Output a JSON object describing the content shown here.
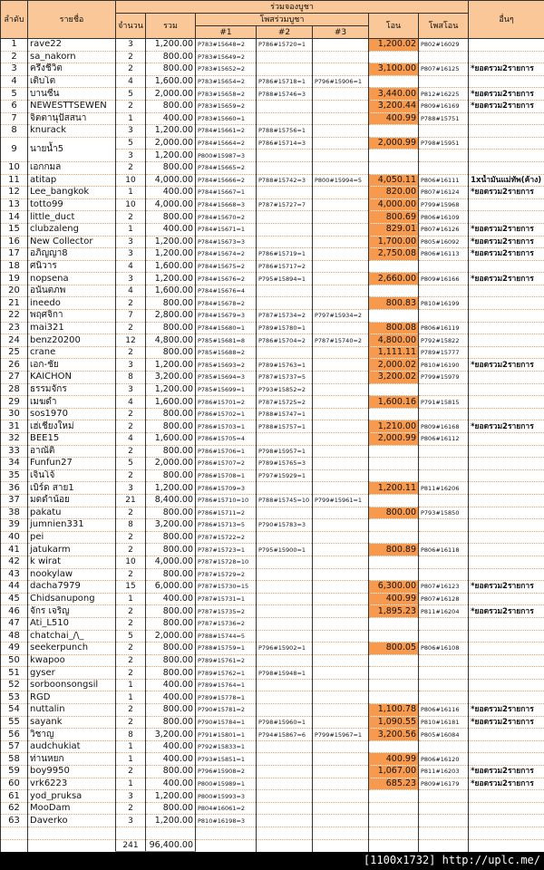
{
  "header": {
    "no": "ลำดับ",
    "name": "รายชื่อ",
    "group": "ร่วมจองบูชา",
    "qty": "จำนวน",
    "total": "รวม",
    "posts": "โพสร่วมบูชา",
    "p1": "#1",
    "p2": "#2",
    "p3": "#3",
    "transfer": "โอน",
    "transfer_post": "โพสโอน",
    "other": "อื่นๆ"
  },
  "colors": {
    "header_bg": "#fac898",
    "transfer_bg": "#f79a4e"
  },
  "rows": [
    [
      "1",
      "rave22",
      [
        [
          "3",
          "1,200.00",
          "P783#15648=2",
          "P786#15720=1",
          "",
          "1,200.02",
          "P802#16029",
          ""
        ]
      ]
    ],
    [
      "2",
      "sa_nakorn",
      [
        [
          "2",
          "800.00",
          "P783#15649=2",
          "",
          "",
          "",
          "",
          ""
        ]
      ]
    ],
    [
      "3",
      "ครึ่งชีวิต",
      [
        [
          "2",
          "800.00",
          "P783#15652=2",
          "",
          "",
          "3,100.00",
          "P807#16125",
          "*ยอดรวม2รายการ"
        ]
      ]
    ],
    [
      "4",
      "เติบโต",
      [
        [
          "4",
          "1,600.00",
          "P783#15654=2",
          "P786#15718=1",
          "P796#15906=1",
          "",
          "",
          ""
        ]
      ]
    ],
    [
      "5",
      "บานชื่น",
      [
        [
          "5",
          "2,000.00",
          "P783#15658=2",
          "P788#15746=3",
          "",
          "3,440.00",
          "P812#16225",
          "*ยอดรวม2รายการ"
        ]
      ]
    ],
    [
      "6",
      "NEWESTTSEWEN",
      [
        [
          "2",
          "800.00",
          "P783#15659=2",
          "",
          "",
          "3,200.44",
          "P809#16169",
          "*ยอดรวม2รายการ"
        ]
      ]
    ],
    [
      "7",
      "จิตตานุปัสสนา",
      [
        [
          "1",
          "400.00",
          "P783#15660=1",
          "",
          "",
          "400.99",
          "P788#15751",
          ""
        ]
      ]
    ],
    [
      "8",
      "knurack",
      [
        [
          "3",
          "1,200.00",
          "P784#15661=2",
          "P788#15756=1",
          "",
          "",
          "",
          ""
        ]
      ]
    ],
    [
      "9",
      "นายน้ำ5",
      [
        [
          "5",
          "2,000.00",
          "P784#15664=2",
          "P786#15714=3",
          "",
          "2,000.99",
          "P798#15951",
          ""
        ],
        [
          "3",
          "1,200.00",
          "P800#15987=3",
          "",
          "",
          "",
          "",
          ""
        ]
      ]
    ],
    [
      "10",
      "เอกกมล",
      [
        [
          "2",
          "800.00",
          "P784#15665=2",
          "",
          "",
          "",
          "",
          ""
        ]
      ]
    ],
    [
      "11",
      "atitap",
      [
        [
          "10",
          "4,000.00",
          "P784#15666=2",
          "P788#15742=3",
          "P800#15994=5",
          "4,050.11",
          "P806#16111",
          "1xน้ำมันแม่ทัพ(ค้าง)"
        ]
      ]
    ],
    [
      "12",
      "Lee_bangkok",
      [
        [
          "1",
          "400.00",
          "P784#15667=1",
          "",
          "",
          "820.00",
          "P807#16124",
          "*ยอดรวม2รายการ"
        ]
      ]
    ],
    [
      "13",
      "totto99",
      [
        [
          "10",
          "4,000.00",
          "P784#15668=3",
          "P787#15727=7",
          "",
          "4,000.00",
          "P799#15968",
          ""
        ]
      ]
    ],
    [
      "14",
      "little_duct",
      [
        [
          "2",
          "800.00",
          "P784#15670=2",
          "",
          "",
          "800.69",
          "P806#16109",
          ""
        ]
      ]
    ],
    [
      "15",
      "clubzaleng",
      [
        [
          "1",
          "400.00",
          "P784#15671=1",
          "",
          "",
          "829.01",
          "P807#16126",
          "*ยอดรวม2รายการ"
        ]
      ]
    ],
    [
      "16",
      "New Collector",
      [
        [
          "3",
          "1,200.00",
          "P784#15673=3",
          "",
          "",
          "1,700.00",
          "P805#16092",
          "*ยอดรวม2รายการ"
        ]
      ]
    ],
    [
      "17",
      "อภิญญา8",
      [
        [
          "3",
          "1,200.00",
          "P784#15674=2",
          "P786#15719=1",
          "",
          "2,750.08",
          "P806#16113",
          "*ยอดรวม2รายการ"
        ]
      ]
    ],
    [
      "18",
      "ศนิวาร",
      [
        [
          "4",
          "1,600.00",
          "P784#15675=2",
          "P786#15717=2",
          "",
          "",
          "",
          ""
        ]
      ]
    ],
    [
      "19",
      "nopsena",
      [
        [
          "3",
          "1,200.00",
          "P784#15676=2",
          "P795#15894=1",
          "",
          "2,660.00",
          "P809#16166",
          "*ยอดรวม2รายการ"
        ]
      ]
    ],
    [
      "20",
      "อนันตภพ",
      [
        [
          "4",
          "1,600.00",
          "P784#15676=4",
          "",
          "",
          "",
          "",
          ""
        ]
      ]
    ],
    [
      "21",
      "ineedo",
      [
        [
          "2",
          "800.00",
          "P784#15678=2",
          "",
          "",
          "800.83",
          "P810#16199",
          ""
        ]
      ]
    ],
    [
      "22",
      "พฤศจิกา",
      [
        [
          "7",
          "2,800.00",
          "P784#15679=3",
          "P787#15734=2",
          "P797#15934=2",
          "",
          "",
          ""
        ]
      ]
    ],
    [
      "23",
      "mai321",
      [
        [
          "2",
          "800.00",
          "P784#15680=1",
          "P789#15780=1",
          "",
          "800.08",
          "P806#16119",
          ""
        ]
      ]
    ],
    [
      "24",
      "benz20200",
      [
        [
          "12",
          "4,800.00",
          "P785#15681=8",
          "P786#15704=2",
          "P787#15740=2",
          "4,800.00",
          "P792#15822",
          ""
        ]
      ]
    ],
    [
      "25",
      "crane",
      [
        [
          "2",
          "800.00",
          "P785#15688=2",
          "",
          "",
          "1,111.11",
          "P789#15777",
          ""
        ]
      ]
    ],
    [
      "26",
      "เอก-ชัย",
      [
        [
          "3",
          "1,200.00",
          "P785#15693=2",
          "P789#15763=1",
          "",
          "2,000.02",
          "P810#16190",
          "*ยอดรวม2รายการ"
        ]
      ]
    ],
    [
      "27",
      "KAICHON",
      [
        [
          "8",
          "3,200.00",
          "P785#15694=3",
          "P787#15737=5",
          "",
          "3,200.02",
          "P799#15979",
          ""
        ]
      ]
    ],
    [
      "28",
      "ธรรมจักร",
      [
        [
          "3",
          "1,200.00",
          "P785#15699=1",
          "P793#15852=2",
          "",
          "",
          "",
          ""
        ]
      ]
    ],
    [
      "29",
      "เมฆดำ",
      [
        [
          "4",
          "1,600.00",
          "P786#15701=2",
          "P787#15725=2",
          "",
          "1,600.16",
          "P791#15815",
          ""
        ]
      ]
    ],
    [
      "30",
      "sos1970",
      [
        [
          "2",
          "800.00",
          "P786#15702=1",
          "P788#15747=1",
          "",
          "",
          "",
          ""
        ]
      ]
    ],
    [
      "31",
      "เฮ่เชียงใหม่",
      [
        [
          "2",
          "800.00",
          "P786#15703=1",
          "P788#15757=1",
          "",
          "1,210.00",
          "P809#16168",
          "*ยอดรวม2รายการ"
        ]
      ]
    ],
    [
      "32",
      "BEE15",
      [
        [
          "4",
          "1,600.00",
          "P786#15705=4",
          "",
          "",
          "2,000.99",
          "P806#16112",
          ""
        ]
      ]
    ],
    [
      "33",
      "อาณัติ",
      [
        [
          "2",
          "800.00",
          "P786#15706=1",
          "P798#15957=1",
          "",
          "",
          "",
          ""
        ]
      ]
    ],
    [
      "34",
      "Funfun27",
      [
        [
          "5",
          "2,000.00",
          "P786#15707=2",
          "P789#15765=3",
          "",
          "",
          "",
          ""
        ]
      ]
    ],
    [
      "35",
      "เจินโจ้",
      [
        [
          "2",
          "800.00",
          "P786#15708=1",
          "P797#15929=1",
          "",
          "",
          "",
          ""
        ]
      ]
    ],
    [
      "36",
      "เบิร์ด  สาย1",
      [
        [
          "3",
          "1,200.00",
          "P786#15709=3",
          "",
          "",
          "1,200.11",
          "P811#16206",
          ""
        ]
      ]
    ],
    [
      "37",
      "มดดำน้อย",
      [
        [
          "21",
          "8,400.00",
          "P786#15710=10",
          "P788#15745=10",
          "P799#15961=1",
          "",
          "",
          ""
        ]
      ]
    ],
    [
      "38",
      "pakatu",
      [
        [
          "2",
          "800.00",
          "P786#15711=2",
          "",
          "",
          "800.00",
          "P793#15850",
          ""
        ]
      ]
    ],
    [
      "39",
      "jumnien331",
      [
        [
          "8",
          "3,200.00",
          "P786#15713=5",
          "P790#15783=3",
          "",
          "",
          "",
          ""
        ]
      ]
    ],
    [
      "40",
      "pei",
      [
        [
          "2",
          "800.00",
          "P787#15722=2",
          "",
          "",
          "",
          "",
          ""
        ]
      ]
    ],
    [
      "41",
      "jatukarm",
      [
        [
          "2",
          "800.00",
          "P787#15723=1",
          "P795#15900=1",
          "",
          "800.89",
          "P806#16118",
          ""
        ]
      ]
    ],
    [
      "42",
      "k wirat",
      [
        [
          "10",
          "4,000.00",
          "P787#15728=10",
          "",
          "",
          "",
          "",
          ""
        ]
      ]
    ],
    [
      "43",
      "nookylaw",
      [
        [
          "2",
          "800.00",
          "P787#15729=2",
          "",
          "",
          "",
          "",
          ""
        ]
      ]
    ],
    [
      "44",
      "dacha7979",
      [
        [
          "15",
          "6,000.00",
          "P787#15730=15",
          "",
          "",
          "6,300.00",
          "P807#16123",
          "*ยอดรวม2รายการ"
        ]
      ]
    ],
    [
      "45",
      "Chidsanupong",
      [
        [
          "1",
          "400.00",
          "P787#15731=1",
          "",
          "",
          "400.99",
          "P807#16128",
          ""
        ]
      ]
    ],
    [
      "46",
      "จักร  เจริญ",
      [
        [
          "2",
          "800.00",
          "P787#15735=2",
          "",
          "",
          "1,895.23",
          "P811#16204",
          "*ยอดรวม2รายการ"
        ]
      ]
    ],
    [
      "47",
      "Ati_L510",
      [
        [
          "2",
          "800.00",
          "P787#15736=2",
          "",
          "",
          "",
          "",
          ""
        ]
      ]
    ],
    [
      "48",
      "chatchai_/\\_",
      [
        [
          "5",
          "2,000.00",
          "P788#15744=5",
          "",
          "",
          "",
          "",
          ""
        ]
      ]
    ],
    [
      "49",
      "seekerpunch",
      [
        [
          "2",
          "800.00",
          "P788#15759=1",
          "P796#15902=1",
          "",
          "800.05",
          "P806#16108",
          ""
        ]
      ]
    ],
    [
      "50",
      "kwapoo",
      [
        [
          "2",
          "800.00",
          "P789#15761=2",
          "",
          "",
          "",
          "",
          ""
        ]
      ]
    ],
    [
      "51",
      "gyser",
      [
        [
          "2",
          "800.00",
          "P789#15762=1",
          "P798#15948=1",
          "",
          "",
          "",
          ""
        ]
      ]
    ],
    [
      "52",
      "sorboonsongsil",
      [
        [
          "1",
          "400.00",
          "P789#15764=1",
          "",
          "",
          "",
          "",
          ""
        ]
      ]
    ],
    [
      "53",
      "RGD",
      [
        [
          "1",
          "400.00",
          "P789#15778=1",
          "",
          "",
          "",
          "",
          ""
        ]
      ]
    ],
    [
      "54",
      "nuttalin",
      [
        [
          "2",
          "800.00",
          "P790#15781=2",
          "",
          "",
          "1,100.78",
          "P806#16116",
          "*ยอดรวม2รายการ"
        ]
      ]
    ],
    [
      "55",
      "sayank",
      [
        [
          "2",
          "800.00",
          "P790#15784=1",
          "P798#15960=1",
          "",
          "1,090.55",
          "P810#16181",
          "*ยอดรวม2รายการ"
        ]
      ]
    ],
    [
      "56",
      "วิชาญ",
      [
        [
          "8",
          "3,200.00",
          "P791#15801=1",
          "P794#15867=6",
          "P799#15967=1",
          "3,200.56",
          "P805#16084",
          ""
        ]
      ]
    ],
    [
      "57",
      "audchukiat",
      [
        [
          "1",
          "400.00",
          "P792#15833=1",
          "",
          "",
          "",
          "",
          ""
        ]
      ]
    ],
    [
      "58",
      "ท่านหยก",
      [
        [
          "1",
          "400.00",
          "P793#15851=1",
          "",
          "",
          "400.99",
          "P806#16120",
          ""
        ]
      ]
    ],
    [
      "59",
      "boy9950",
      [
        [
          "2",
          "800.00",
          "P796#15908=2",
          "",
          "",
          "1,067.00",
          "P811#16203",
          "*ยอดรวม2รายการ"
        ]
      ]
    ],
    [
      "60",
      "vrk6223",
      [
        [
          "1",
          "400.00",
          "P800#15989=1",
          "",
          "",
          "685.23",
          "P809#16179",
          "*ยอดรวม2รายการ"
        ]
      ]
    ],
    [
      "61",
      "yod_pruksa",
      [
        [
          "3",
          "1,200.00",
          "P800#15993=3",
          "",
          "",
          "",
          "",
          ""
        ]
      ]
    ],
    [
      "62",
      "MooDam",
      [
        [
          "2",
          "800.00",
          "P804#16061=2",
          "",
          "",
          "",
          "",
          ""
        ]
      ]
    ],
    [
      "63",
      "Daverko",
      [
        [
          "3",
          "1,200.00",
          "P810#16198=3",
          "",
          "",
          "",
          "",
          ""
        ]
      ]
    ]
  ],
  "totals": {
    "qty": "241",
    "total": "96,400.00"
  },
  "watermark": "[1100x1732] http://uplc.me/"
}
